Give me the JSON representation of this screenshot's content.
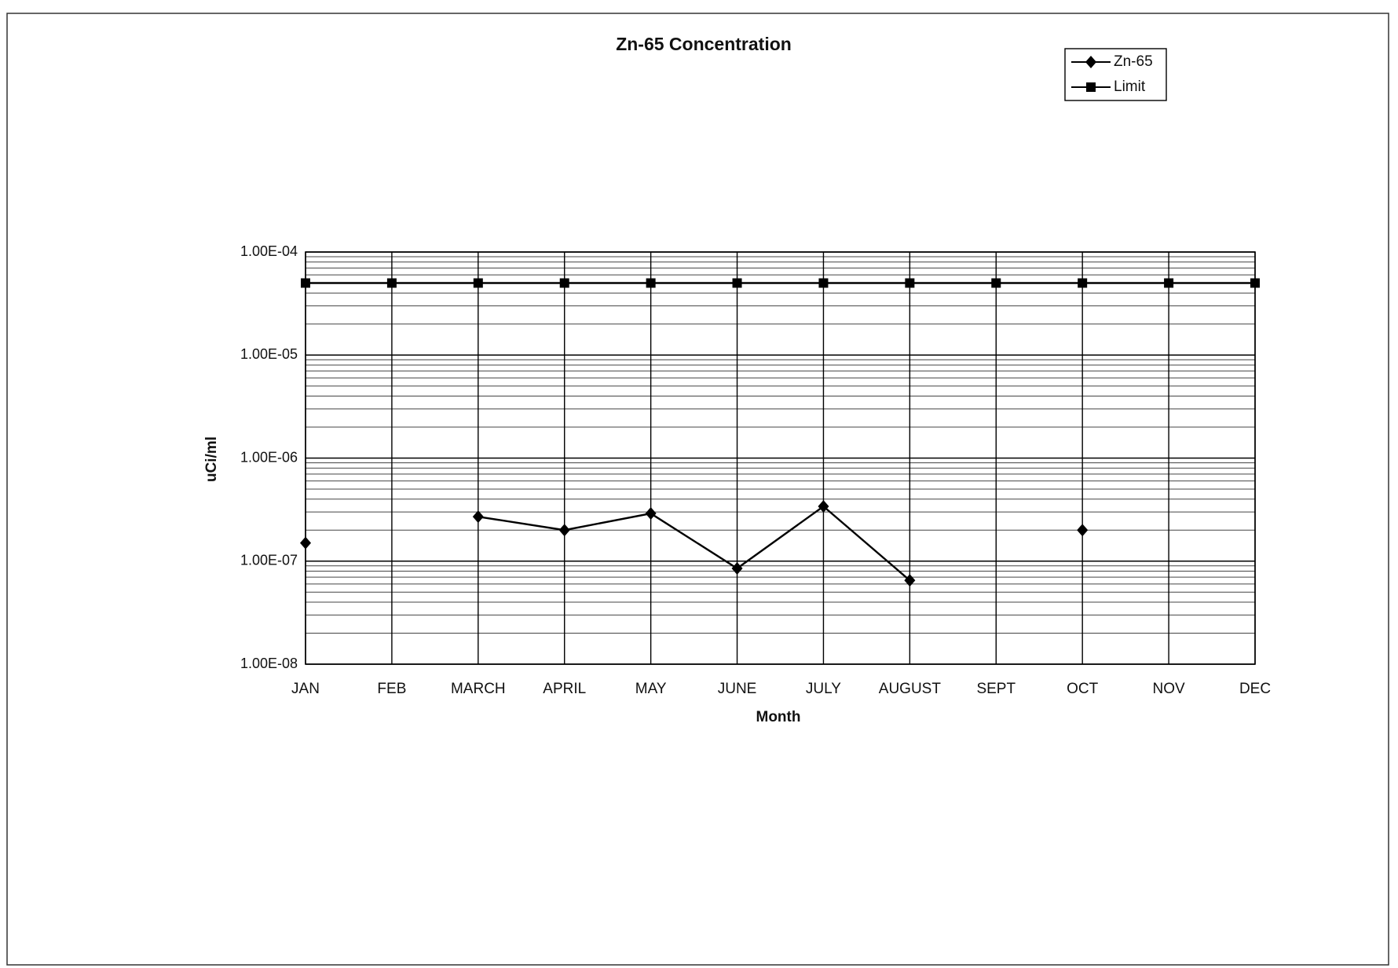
{
  "chart_data": {
    "type": "line",
    "title": "Zn-65 Concentration",
    "x_label": "Month",
    "y_label": "uCi/ml",
    "categories": [
      "JAN",
      "FEB",
      "MARCH",
      "APRIL",
      "MAY",
      "JUNE",
      "JULY",
      "AUGUST",
      "SEPT",
      "OCT",
      "NOV",
      "DEC"
    ],
    "series": [
      {
        "name": "Zn-65",
        "color": "#000000",
        "marker": "diamond",
        "values": [
          1.5e-07,
          null,
          2.7e-07,
          2e-07,
          2.9e-07,
          8.5e-08,
          3.4e-07,
          6.5e-08,
          null,
          2e-07,
          null,
          null
        ]
      },
      {
        "name": "Limit",
        "color": "#000000",
        "marker": "square",
        "values": [
          5e-05,
          5e-05,
          5e-05,
          5e-05,
          5e-05,
          5e-05,
          5e-05,
          5e-05,
          5e-05,
          5e-05,
          5e-05,
          5e-05
        ]
      }
    ],
    "ylim": [
      1e-08,
      0.0001
    ],
    "log_y": true,
    "yticks": [
      {
        "value": 1e-08,
        "label": "1.00E-08"
      },
      {
        "value": 1e-07,
        "label": "1.00E-07"
      },
      {
        "value": 1e-06,
        "label": "1.00E-06"
      },
      {
        "value": 1e-05,
        "label": "1.00E-05"
      },
      {
        "value": 0.0001,
        "label": "1.00E-04"
      }
    ],
    "grid": true,
    "minor_grid": true,
    "legend": "upper right"
  }
}
